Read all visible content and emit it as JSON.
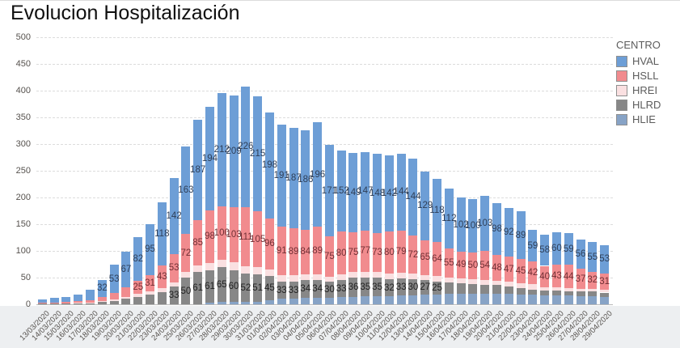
{
  "title": "Evolucion Hospitalización",
  "legend": {
    "title": "CENTRO",
    "items": [
      {
        "label": "HVAL",
        "color": "#6d9ed6"
      },
      {
        "label": "HSLL",
        "color": "#f18b8e"
      },
      {
        "label": "HREI",
        "color": "#fae0e1"
      },
      {
        "label": "HLRD",
        "color": "#878787"
      },
      {
        "label": "HLIE",
        "color": "#87a3c6"
      }
    ]
  },
  "chart_data": {
    "type": "bar",
    "stacked": true,
    "title": "Evolucion Hospitalización",
    "xlabel": "",
    "ylabel": "",
    "ylim": [
      0,
      500
    ],
    "yticks": [
      0,
      50,
      100,
      150,
      200,
      250,
      300,
      350,
      400,
      450,
      500
    ],
    "grid": "dashed-horizontal",
    "legend_position": "right",
    "label_min_value": 24,
    "categories": [
      "13/03/2020",
      "14/03/2020",
      "15/03/2020",
      "16/03/2020",
      "17/03/2020",
      "18/03/2020",
      "19/03/2020",
      "20/03/2020",
      "21/03/2020",
      "22/03/2020",
      "23/03/2020",
      "24/03/2020",
      "25/03/2020",
      "26/03/2020",
      "27/03/2020",
      "28/03/2020",
      "29/03/2020",
      "30/03/2020",
      "31/03/2020",
      "01/04/2020",
      "02/04/2020",
      "03/04/2020",
      "04/04/2020",
      "05/04/2020",
      "06/04/2020",
      "07/04/2020",
      "08/04/2020",
      "09/04/2020",
      "10/04/2020",
      "11/04/2020",
      "12/04/2020",
      "13/04/2020",
      "14/04/2020",
      "15/04/2020",
      "16/04/2020",
      "17/04/2020",
      "18/04/2020",
      "19/04/2020",
      "20/04/2020",
      "21/04/2020",
      "22/04/2020",
      "23/04/2020",
      "24/04/2020",
      "25/04/2020",
      "26/04/2020",
      "27/04/2020",
      "28/04/2020",
      "29/04/2020"
    ],
    "series": [
      {
        "name": "HVAL",
        "color": "#6d9ed6",
        "label_color": "#2e3e57",
        "values": [
          6,
          9,
          10,
          12,
          20,
          32,
          53,
          67,
          82,
          95,
          118,
          142,
          163,
          187,
          194,
          212,
          209,
          226,
          215,
          198,
          191,
          187,
          186,
          196,
          171,
          152,
          149,
          147,
          148,
          142,
          144,
          144,
          129,
          118,
          112,
          102,
          100,
          103,
          98,
          92,
          89,
          59,
          58,
          60,
          59,
          56,
          55,
          53
        ]
      },
      {
        "name": "HSLL",
        "color": "#f18b8e",
        "label_color": "#702f34",
        "values": [
          2,
          2,
          3,
          3,
          4,
          8,
          12,
          18,
          25,
          31,
          43,
          53,
          72,
          85,
          98,
          100,
          103,
          111,
          105,
          96,
          91,
          89,
          84,
          89,
          75,
          80,
          75,
          77,
          73,
          80,
          79,
          72,
          65,
          64,
          55,
          49,
          50,
          54,
          48,
          47,
          45,
          42,
          40,
          43,
          44,
          37,
          32,
          31
        ]
      },
      {
        "name": "HREI",
        "color": "#fae0e1",
        "label_color": "#702f34",
        "values": [
          0,
          0,
          0,
          1,
          1,
          2,
          3,
          4,
          5,
          6,
          8,
          8,
          10,
          12,
          14,
          15,
          15,
          14,
          13,
          12,
          12,
          11,
          10,
          10,
          10,
          10,
          10,
          11,
          11,
          10,
          10,
          10,
          10,
          10,
          9,
          9,
          9,
          9,
          8,
          8,
          10,
          10,
          6,
          6,
          5,
          5,
          5,
          5
        ]
      },
      {
        "name": "HLRD",
        "color": "#878787",
        "label_color": "#222222",
        "values": [
          1,
          1,
          1,
          2,
          2,
          4,
          6,
          10,
          14,
          18,
          22,
          33,
          50,
          61,
          61,
          65,
          60,
          52,
          51,
          45,
          33,
          33,
          34,
          34,
          30,
          33,
          36,
          35,
          35,
          32,
          33,
          30,
          27,
          25,
          22,
          20,
          18,
          17,
          16,
          15,
          12,
          10,
          9,
          9,
          9,
          9,
          9,
          8
        ]
      },
      {
        "name": "HLIE",
        "color": "#87a3c6",
        "label_color": "#2e3e57",
        "values": [
          0,
          0,
          0,
          0,
          0,
          0,
          0,
          0,
          0,
          0,
          0,
          0,
          0,
          0,
          3,
          4,
          4,
          5,
          5,
          8,
          10,
          10,
          12,
          12,
          12,
          13,
          14,
          15,
          15,
          15,
          16,
          17,
          18,
          18,
          19,
          20,
          20,
          20,
          20,
          19,
          18,
          18,
          17,
          17,
          16,
          15,
          15,
          14
        ]
      }
    ]
  }
}
